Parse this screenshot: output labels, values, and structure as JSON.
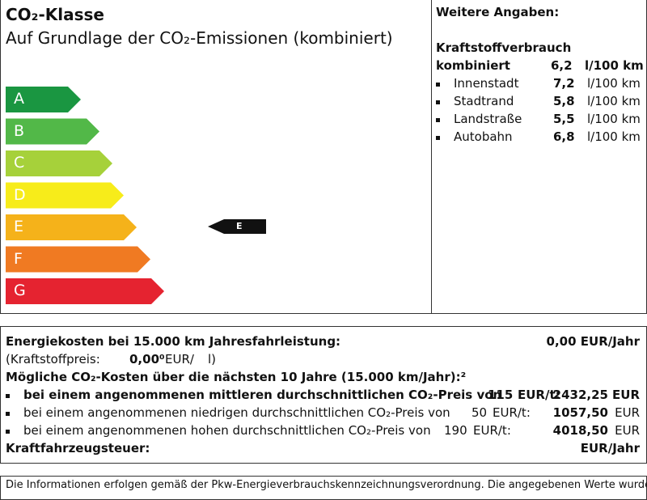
{
  "header": {
    "title": "CO₂-Klasse",
    "subtitle": "Auf Grundlage der CO₂-Emissionen (kombiniert)"
  },
  "classes": [
    "A",
    "B",
    "C",
    "D",
    "E",
    "F",
    "G"
  ],
  "current_class": "E",
  "details": {
    "title": "Weitere Angaben:",
    "consumption_title": "Kraftstoffverbrauch",
    "combined": {
      "label": "kombiniert",
      "value": "6,2",
      "unit": "l/100 km"
    },
    "items": [
      {
        "label": "Innenstadt",
        "value": "7,2",
        "unit": "l/100 km"
      },
      {
        "label": "Stadtrand",
        "value": "5,8",
        "unit": "l/100 km"
      },
      {
        "label": "Landstraße",
        "value": "5,5",
        "unit": "l/100 km"
      },
      {
        "label": "Autobahn",
        "value": "6,8",
        "unit": "l/100 km"
      }
    ]
  },
  "costs": {
    "energy_label": "Energiekosten bei 15.000 km Jahresfahrleistung:",
    "energy_value": "0,00 EUR/Jahr",
    "fuel_price_label": "(Kraftstoffpreis:",
    "fuel_price_value": "0,00⁰",
    "fuel_price_unit": "EUR/",
    "fuel_price_end": "l)",
    "co2_title": "Mögliche CO₂-Kosten über die nächsten 10 Jahre (15.000 km/Jahr):²",
    "co2_rows": [
      {
        "label": "bei einem angenommenen mittleren durchschnittlichen CO₂-Preis von",
        "price": "115",
        "unit": "EUR/t:",
        "amount": "2432,25",
        "currency": "EUR"
      },
      {
        "label": "bei einem angenommenen niedrigen durchschnittlichen CO₂-Preis von",
        "price": "50",
        "unit": "EUR/t:",
        "amount": "1057,50",
        "currency": "EUR"
      },
      {
        "label": "bei einem angenommenen hohen durchschnittlichen CO₂-Preis von",
        "price": "190",
        "unit": "EUR/t:",
        "amount": "4018,50",
        "currency": "EUR"
      }
    ],
    "tax_label": "Kraftfahrzeugsteuer:",
    "tax_value": "EUR/Jahr"
  },
  "footer": "Die Informationen erfolgen gemäß der Pkw-Energieverbrauchskennzeichnungsverordnung. Die angegebenen Werte wurden"
}
